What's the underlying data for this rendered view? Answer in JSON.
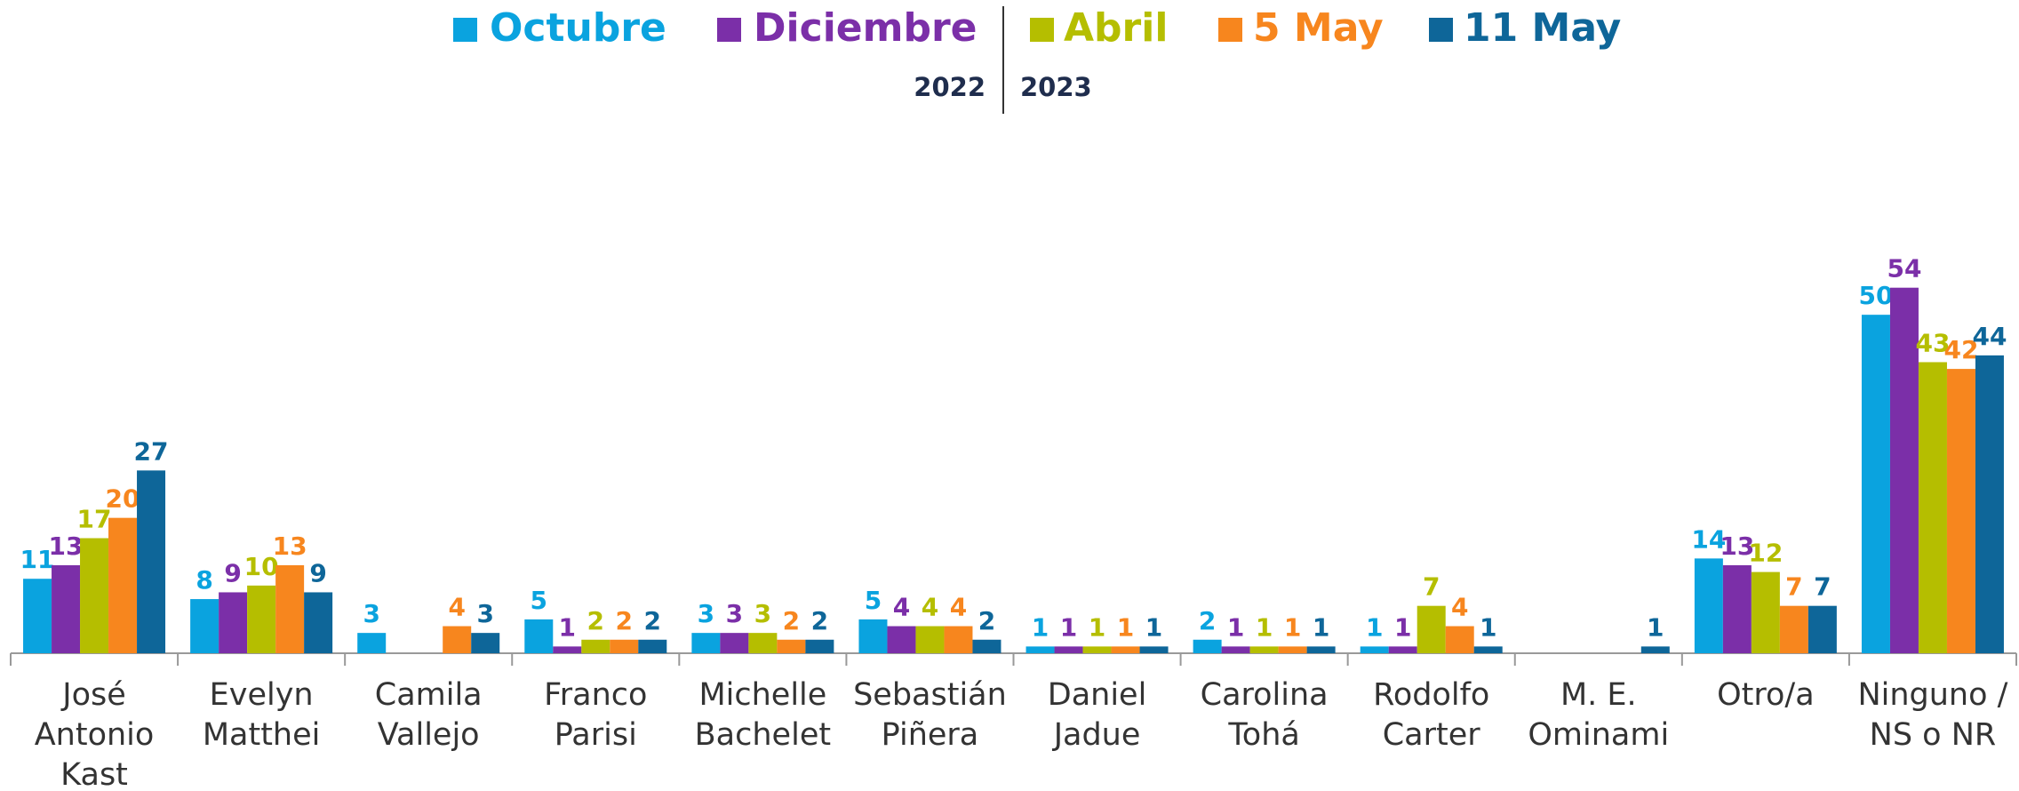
{
  "chart_data": {
    "type": "bar",
    "categories": [
      "José\nAntonio\nKast",
      "Evelyn\nMatthei",
      "Camila\nVallejo",
      "Franco\nParisi",
      "Michelle\nBachelet",
      "Sebastián\nPiñera",
      "Daniel\nJadue",
      "Carolina\nTohá",
      "Rodolfo\nCarter",
      "M. E.\nOminami",
      "Otro/a",
      "Ninguno /\nNS o NR"
    ],
    "series": [
      {
        "name": "Octubre",
        "color": "#0aa3df",
        "values": [
          11,
          8,
          3,
          5,
          3,
          5,
          1,
          2,
          1,
          null,
          14,
          50
        ]
      },
      {
        "name": "Diciembre",
        "color": "#7b2fa8",
        "values": [
          13,
          9,
          null,
          1,
          3,
          4,
          1,
          1,
          1,
          null,
          13,
          54
        ]
      },
      {
        "name": "Abril",
        "color": "#b5be00",
        "values": [
          17,
          10,
          null,
          2,
          3,
          4,
          1,
          1,
          7,
          null,
          12,
          43
        ]
      },
      {
        "name": "5 May",
        "color": "#f7861e",
        "values": [
          20,
          13,
          4,
          2,
          2,
          4,
          1,
          1,
          4,
          null,
          7,
          42
        ]
      },
      {
        "name": "11 May",
        "color": "#0e6699",
        "values": [
          27,
          9,
          3,
          2,
          2,
          2,
          1,
          1,
          1,
          1,
          7,
          44
        ]
      }
    ],
    "legend_groups": [
      "2022",
      "2023"
    ],
    "ylim": [
      0,
      60
    ]
  }
}
